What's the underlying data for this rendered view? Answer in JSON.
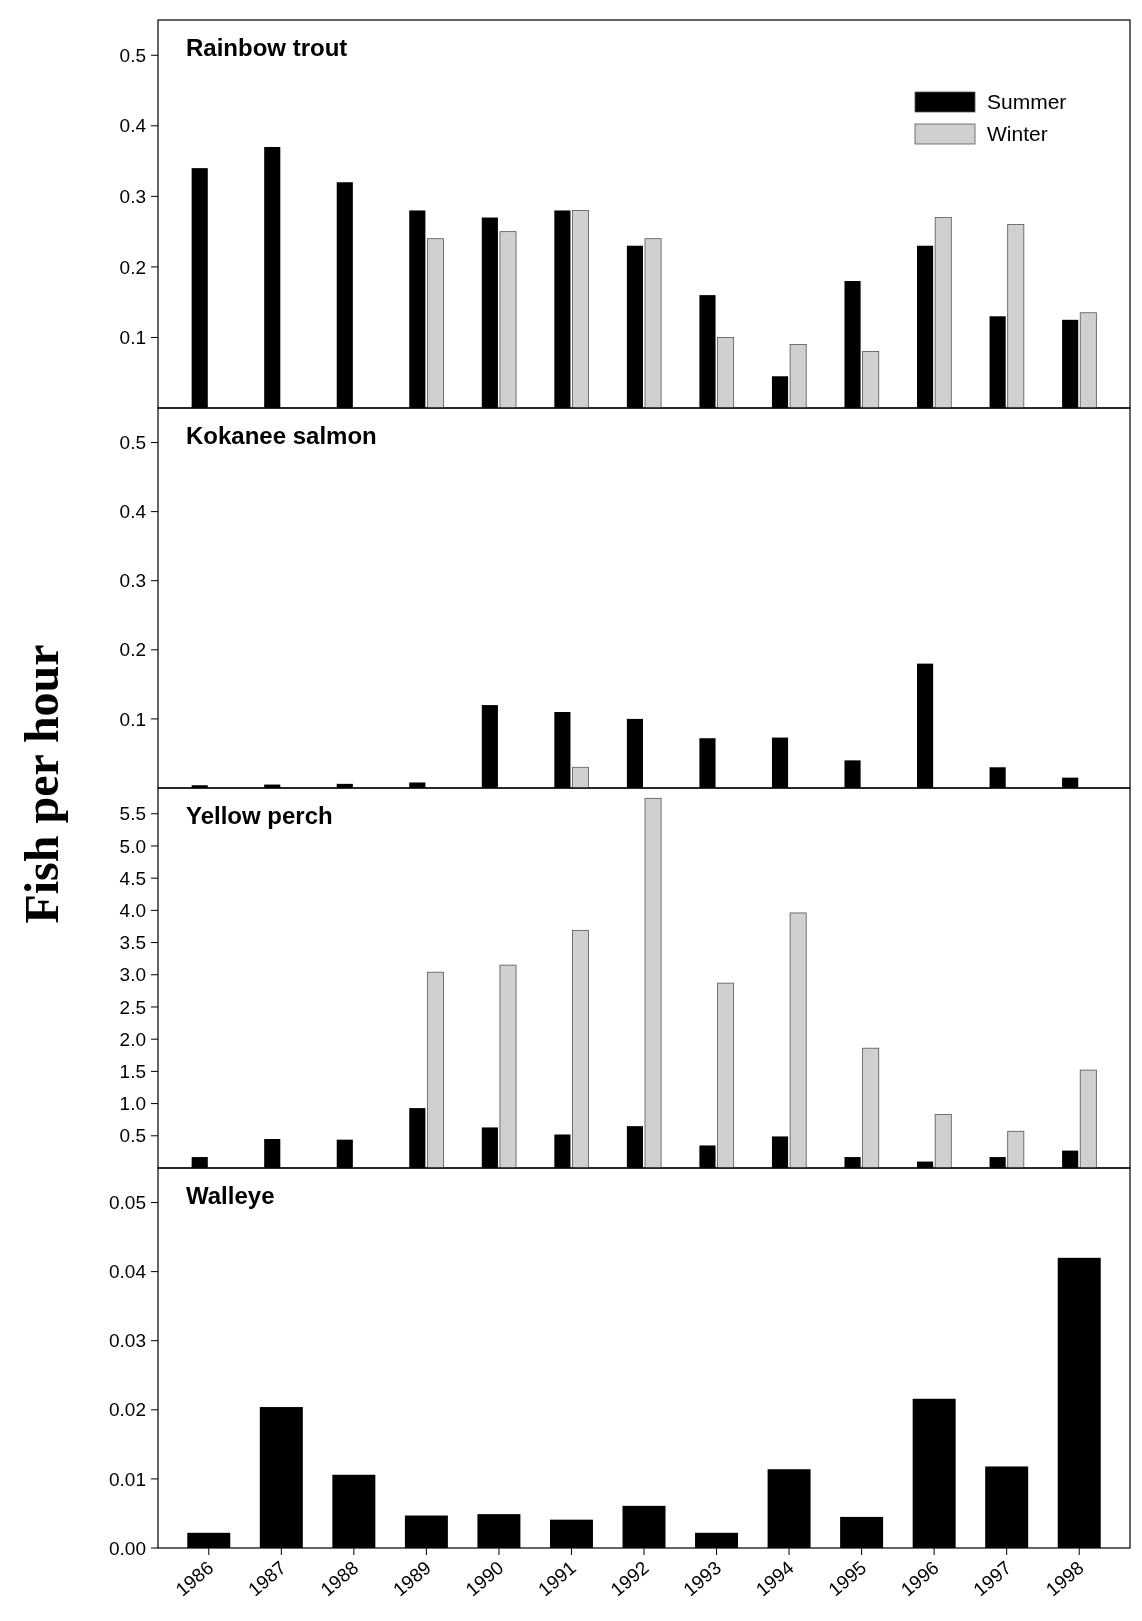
{
  "chart_data": [
    {
      "type": "bar",
      "title": "Rainbow trout",
      "ylabel": "Fish per hour",
      "categories": [
        "1986",
        "1987",
        "1988",
        "1989",
        "1990",
        "1991",
        "1992",
        "1993",
        "1994",
        "1995",
        "1996",
        "1997",
        "1998"
      ],
      "series": [
        {
          "name": "Summer",
          "color": "#000000",
          "values": [
            0.34,
            0.37,
            0.32,
            0.28,
            0.27,
            0.28,
            0.23,
            0.16,
            0.045,
            0.18,
            0.23,
            0.13,
            0.125
          ]
        },
        {
          "name": "Winter",
          "color": "#d0d0d0",
          "values": [
            null,
            null,
            null,
            0.24,
            0.25,
            0.28,
            0.24,
            0.1,
            0.09,
            0.08,
            0.27,
            0.26,
            0.135
          ]
        }
      ],
      "ylim": [
        0,
        0.55
      ],
      "yticks": [
        0.1,
        0.2,
        0.3,
        0.4,
        0.5
      ],
      "legend": "top right",
      "tick_labels": "y"
    },
    {
      "type": "bar",
      "title": "Kokanee salmon",
      "categories": [
        "1986",
        "1987",
        "1988",
        "1989",
        "1990",
        "1991",
        "1992",
        "1993",
        "1994",
        "1995",
        "1996",
        "1997",
        "1998"
      ],
      "series": [
        {
          "color": "#000000",
          "values": [
            0.004,
            0.005,
            0.006,
            0.008,
            0.12,
            0.11,
            0.1,
            0.072,
            0.073,
            0.04,
            0.18,
            0.03,
            0.015
          ]
        },
        {
          "color": "#d0d0d0",
          "values": [
            null,
            null,
            null,
            null,
            null,
            0.03,
            null,
            null,
            null,
            null,
            null,
            null,
            null
          ]
        }
      ],
      "ylim": [
        0,
        0.55
      ],
      "yticks": [
        0.1,
        0.2,
        0.3,
        0.4,
        0.5
      ],
      "tick_labels": "y"
    },
    {
      "type": "bar",
      "title": "Yellow perch",
      "categories": [
        "1986",
        "1987",
        "1988",
        "1989",
        "1990",
        "1991",
        "1992",
        "1993",
        "1994",
        "1995",
        "1996",
        "1997",
        "1998"
      ],
      "series": [
        {
          "color": "#000000",
          "values": [
            0.17,
            0.45,
            0.44,
            0.93,
            0.63,
            0.52,
            0.65,
            0.35,
            0.49,
            0.17,
            0.1,
            0.17,
            0.27
          ]
        },
        {
          "color": "#d0d0d0",
          "values": [
            null,
            null,
            null,
            3.04,
            3.15,
            3.69,
            5.74,
            2.87,
            3.96,
            1.86,
            0.83,
            0.57,
            1.52
          ]
        }
      ],
      "ylim": [
        0,
        5.9
      ],
      "yticks": [
        0.5,
        {
          "value": 1,
          "label": "1.0"
        },
        1.5,
        {
          "value": 2,
          "label": "2.0"
        },
        2.5,
        {
          "value": 3,
          "label": "3.0"
        },
        3.5,
        {
          "value": 4,
          "label": "4.0"
        },
        4.5,
        {
          "value": 5,
          "label": "5.0"
        },
        5.5
      ],
      "tick_labels": "y"
    },
    {
      "type": "bar",
      "title": "Walleye",
      "categories": [
        "1986",
        "1987",
        "1988",
        "1989",
        "1990",
        "1991",
        "1992",
        "1993",
        "1994",
        "1995",
        "1996",
        "1997",
        "1998"
      ],
      "series": [
        {
          "color": "#000000",
          "values": [
            0.0022,
            0.0204,
            0.0106,
            0.0047,
            0.0049,
            0.0041,
            0.0061,
            0.0022,
            0.0114,
            0.0045,
            0.0216,
            0.0118,
            0.042
          ]
        }
      ],
      "ylim": [
        0,
        0.055
      ],
      "yticks": [
        {
          "value": 0,
          "label": "0.00"
        },
        0.01,
        0.02,
        0.03,
        0.04,
        0.05
      ]
    }
  ]
}
